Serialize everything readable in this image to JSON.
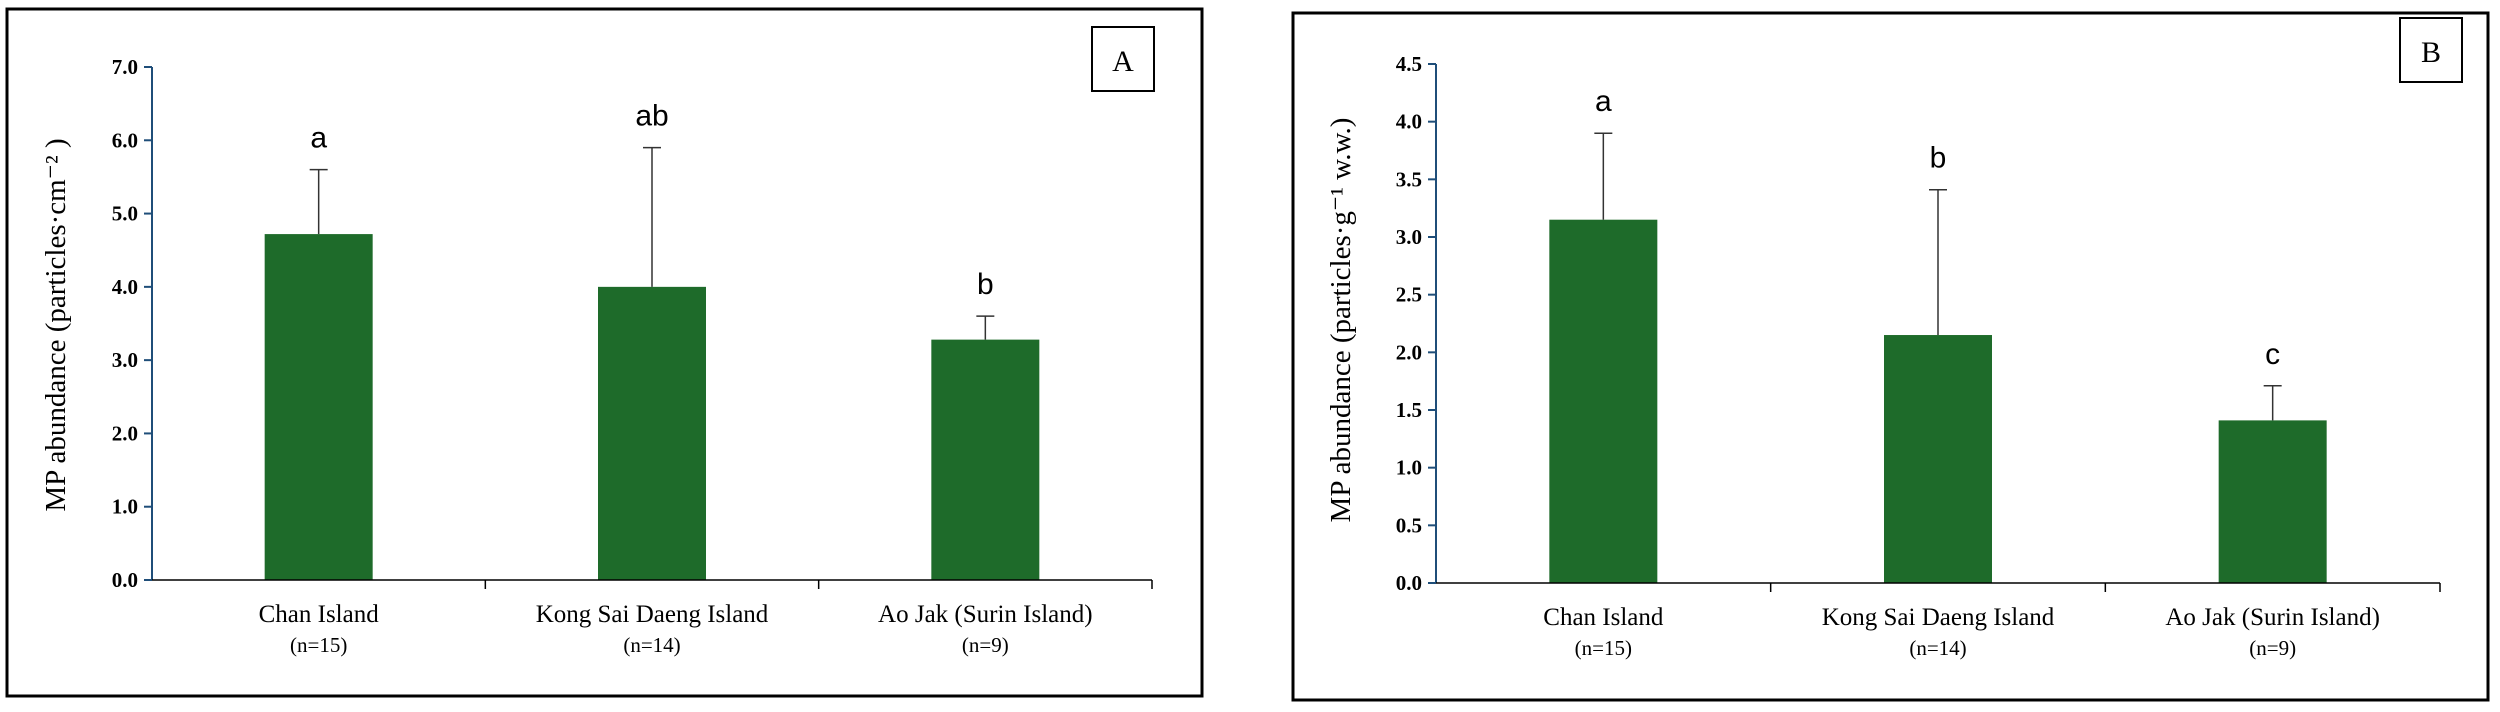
{
  "chart_data": [
    {
      "type": "bar",
      "panel_label": "A",
      "categories": [
        "Chan Island",
        "Kong Sai Daeng Island",
        "Ao Jak (Surin Island)"
      ],
      "sample_sizes": [
        "(n=15)",
        "(n=14)",
        "(n=9)"
      ],
      "values": [
        4.72,
        4.0,
        3.28
      ],
      "error_upper": [
        5.6,
        5.9,
        3.6
      ],
      "significance_letters": [
        "a",
        "ab",
        "b"
      ],
      "ylabel": "MP abundance (particles·cm⁻² )",
      "xlabel": "",
      "ylim": [
        0,
        7
      ],
      "yticks": [
        "0.0",
        "1.0",
        "2.0",
        "3.0",
        "4.0",
        "5.0",
        "6.0",
        "7.0"
      ],
      "ytick_values": [
        0,
        1,
        2,
        3,
        4,
        5,
        6,
        7
      ],
      "bar_color": "#1e6b2a"
    },
    {
      "type": "bar",
      "panel_label": "B",
      "categories": [
        "Chan Island",
        "Kong Sai Daeng Island",
        "Ao Jak (Surin Island)"
      ],
      "sample_sizes": [
        "(n=15)",
        "(n=14)",
        "(n=9)"
      ],
      "values": [
        3.15,
        2.15,
        1.41
      ],
      "error_upper": [
        3.9,
        3.41,
        1.71
      ],
      "significance_letters": [
        "a",
        "b",
        "c"
      ],
      "ylabel": "MP abundance (particles·g⁻¹ w.w.)",
      "xlabel": "",
      "ylim": [
        0,
        4.5
      ],
      "yticks": [
        "0.0",
        "0.5",
        "1.0",
        "1.5",
        "2.0",
        "2.5",
        "3.0",
        "3.5",
        "4.0",
        "4.5"
      ],
      "ytick_values": [
        0,
        0.5,
        1,
        1.5,
        2,
        2.5,
        3,
        3.5,
        4,
        4.5
      ],
      "bar_color": "#1e6b2a"
    }
  ]
}
